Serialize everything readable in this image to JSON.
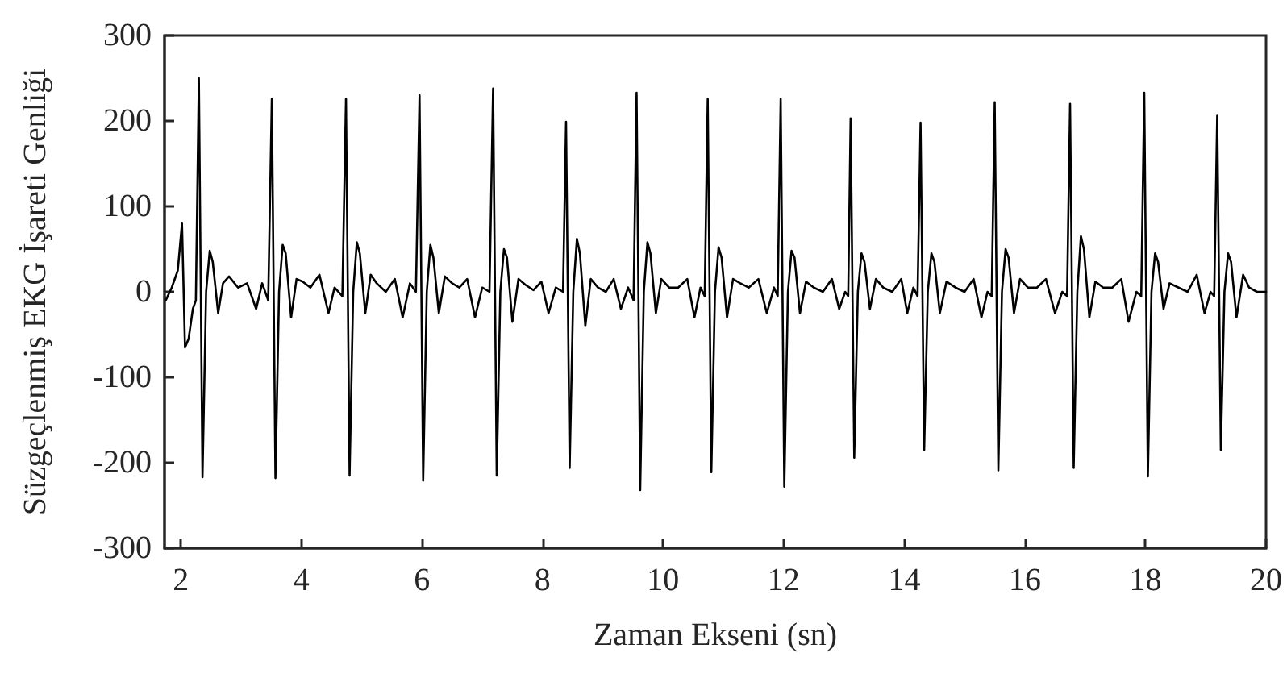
{
  "chart_data": {
    "type": "line",
    "xlabel": "Zaman Ekseni (sn)",
    "ylabel": "Süzgeçlenmiş EKG İşareti Genliği",
    "xlim": [
      1.73,
      20
    ],
    "xticks": [
      2,
      4,
      6,
      8,
      10,
      12,
      14,
      16,
      18,
      20
    ],
    "ylim": [
      -300,
      300
    ],
    "yticks": [
      -300,
      -200,
      -100,
      0,
      100,
      200,
      300
    ],
    "marker": "none",
    "line_style": "solid",
    "series": [
      {
        "color": "#000000",
        "x": [
          1.75,
          1.85,
          1.95,
          2.02,
          2.07,
          2.13,
          2.2,
          2.25,
          2.3,
          2.36,
          2.42,
          2.48,
          2.53,
          2.62,
          2.7,
          2.8,
          2.95,
          3.1,
          3.25,
          3.35,
          3.45,
          3.51,
          3.57,
          3.63,
          3.69,
          3.74,
          3.83,
          3.92,
          4.02,
          4.15,
          4.3,
          4.45,
          4.55,
          4.68,
          4.74,
          4.8,
          4.86,
          4.92,
          4.97,
          5.06,
          5.15,
          5.25,
          5.4,
          5.55,
          5.68,
          5.8,
          5.9,
          5.96,
          6.02,
          6.08,
          6.14,
          6.19,
          6.28,
          6.38,
          6.5,
          6.62,
          6.75,
          6.88,
          7.0,
          7.12,
          7.18,
          7.24,
          7.3,
          7.36,
          7.41,
          7.5,
          7.6,
          7.72,
          7.85,
          7.98,
          8.1,
          8.22,
          8.34,
          8.39,
          8.45,
          8.51,
          8.57,
          8.62,
          8.71,
          8.8,
          8.92,
          9.05,
          9.18,
          9.3,
          9.42,
          9.51,
          9.56,
          9.62,
          9.68,
          9.74,
          9.79,
          9.88,
          9.97,
          10.1,
          10.25,
          10.4,
          10.52,
          10.62,
          10.69,
          10.74,
          10.8,
          10.86,
          10.92,
          10.97,
          11.06,
          11.16,
          11.28,
          11.42,
          11.58,
          11.72,
          11.84,
          11.9,
          11.95,
          12.01,
          12.07,
          12.13,
          12.18,
          12.27,
          12.37,
          12.5,
          12.65,
          12.8,
          12.92,
          13.02,
          13.07,
          13.11,
          13.17,
          13.23,
          13.29,
          13.34,
          13.43,
          13.53,
          13.65,
          13.8,
          13.95,
          14.05,
          14.15,
          14.22,
          14.27,
          14.33,
          14.39,
          14.45,
          14.5,
          14.59,
          14.7,
          14.85,
          15.0,
          15.15,
          15.28,
          15.38,
          15.45,
          15.5,
          15.56,
          15.62,
          15.68,
          15.73,
          15.82,
          15.92,
          16.05,
          16.2,
          16.35,
          16.5,
          16.62,
          16.7,
          16.75,
          16.81,
          16.87,
          16.93,
          16.98,
          17.07,
          17.17,
          17.3,
          17.45,
          17.6,
          17.72,
          17.85,
          17.93,
          17.98,
          18.04,
          18.1,
          18.16,
          18.21,
          18.3,
          18.4,
          18.55,
          18.7,
          18.85,
          18.98,
          19.08,
          19.14,
          19.19,
          19.25,
          19.31,
          19.37,
          19.42,
          19.51,
          19.62,
          19.72,
          19.85,
          20.0
        ],
        "values": [
          -10,
          5,
          25,
          80,
          -65,
          -55,
          -20,
          -10,
          250,
          -217,
          0,
          48,
          35,
          -25,
          10,
          18,
          5,
          10,
          -20,
          10,
          -10,
          226,
          -218,
          0,
          55,
          45,
          -30,
          15,
          12,
          5,
          20,
          -25,
          5,
          -5,
          226,
          -215,
          0,
          58,
          45,
          -25,
          20,
          10,
          0,
          15,
          -30,
          10,
          0,
          230,
          -221,
          0,
          55,
          40,
          -25,
          18,
          10,
          5,
          15,
          -30,
          5,
          0,
          238,
          -215,
          0,
          50,
          40,
          -35,
          15,
          8,
          2,
          12,
          -25,
          5,
          0,
          199,
          -206,
          0,
          62,
          45,
          -40,
          15,
          5,
          0,
          15,
          -20,
          5,
          -10,
          233,
          -232,
          0,
          58,
          45,
          -25,
          15,
          5,
          5,
          15,
          -30,
          5,
          -5,
          226,
          -211,
          0,
          52,
          40,
          -30,
          15,
          10,
          5,
          15,
          -25,
          5,
          -5,
          226,
          -228,
          0,
          48,
          40,
          -25,
          12,
          5,
          0,
          15,
          -20,
          0,
          -5,
          203,
          -194,
          0,
          45,
          35,
          -20,
          15,
          5,
          0,
          15,
          -25,
          5,
          -5,
          198,
          -185,
          0,
          45,
          35,
          -25,
          12,
          5,
          0,
          15,
          -30,
          0,
          -5,
          222,
          -209,
          0,
          50,
          40,
          -25,
          15,
          5,
          5,
          15,
          -25,
          0,
          -5,
          220,
          -206,
          0,
          65,
          50,
          -30,
          12,
          5,
          5,
          15,
          -35,
          0,
          -5,
          233,
          -216,
          0,
          45,
          35,
          -20,
          10,
          5,
          0,
          20,
          -25,
          0,
          -5,
          206,
          -185,
          0,
          45,
          35,
          -30,
          20,
          5,
          0,
          0
        ]
      }
    ]
  }
}
